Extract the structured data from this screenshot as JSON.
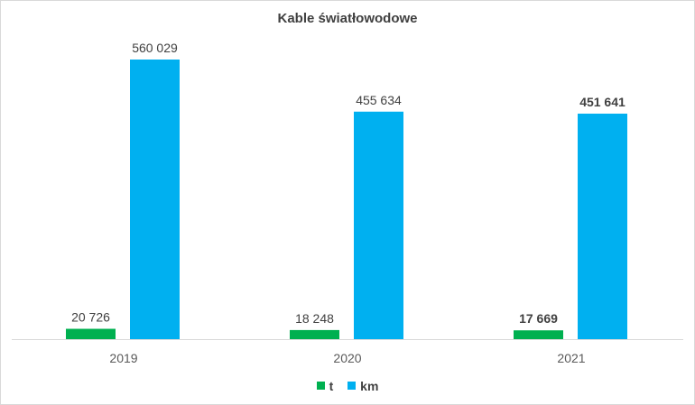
{
  "chart_data": {
    "type": "bar",
    "title": "Kable światłowodowe",
    "categories": [
      "2019",
      "2020",
      "2021"
    ],
    "series": [
      {
        "name": "t",
        "color": "#00b050",
        "values": [
          20726,
          18248,
          17669
        ],
        "labels": [
          "20 726",
          "18 248",
          "17 669"
        ],
        "bold_labels": [
          false,
          false,
          true
        ]
      },
      {
        "name": "km",
        "color": "#00b0f0",
        "values": [
          560029,
          455634,
          451641
        ],
        "labels": [
          "560 029",
          "455 634",
          "451 641"
        ],
        "bold_labels": [
          false,
          false,
          true
        ]
      }
    ],
    "ylim": [
      0,
      560029
    ],
    "grid": false,
    "legend_position": "bottom"
  }
}
